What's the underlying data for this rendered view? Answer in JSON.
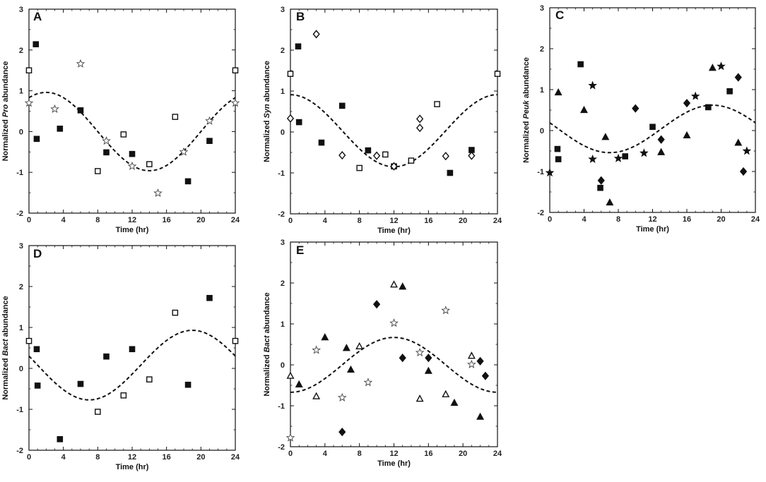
{
  "chart_data": [
    {
      "panel": "A",
      "type": "scatter",
      "ylabel_pre": "Normalized ",
      "ylabel_italic": "Pro",
      "ylabel_post": " abundance",
      "xlabel": "Time (hr)",
      "xlim": [
        0,
        24
      ],
      "ylim": [
        -2,
        3
      ],
      "xticks": [
        0,
        4,
        8,
        12,
        16,
        20,
        24
      ],
      "yticks": [
        -2,
        -1,
        0,
        1,
        2,
        3
      ],
      "series": [
        {
          "marker": "square-filled",
          "points": [
            [
              0.8,
              2.14
            ],
            [
              0.9,
              -0.18
            ],
            [
              3.6,
              0.07
            ],
            [
              6.0,
              0.52
            ],
            [
              9.0,
              -0.51
            ],
            [
              12.0,
              -0.55
            ],
            [
              18.5,
              -1.22
            ],
            [
              21.0,
              -0.23
            ]
          ]
        },
        {
          "marker": "square-open",
          "points": [
            [
              0.0,
              1.5
            ],
            [
              8.0,
              -0.97
            ],
            [
              11.0,
              -0.07
            ],
            [
              14.0,
              -0.8
            ],
            [
              17.0,
              0.36
            ],
            [
              24.0,
              1.5
            ]
          ]
        },
        {
          "marker": "star-open",
          "points": [
            [
              0.0,
              0.7
            ],
            [
              3.0,
              0.55
            ],
            [
              6.0,
              1.66
            ],
            [
              9.0,
              -0.23
            ],
            [
              12.0,
              -0.85
            ],
            [
              15.0,
              -1.51
            ],
            [
              18.0,
              -0.5
            ],
            [
              21.0,
              0.26
            ],
            [
              24.0,
              0.7
            ]
          ]
        }
      ],
      "fit": {
        "mean": 0.0,
        "amp": 0.96,
        "peak": 2.0,
        "period": 24
      }
    },
    {
      "panel": "B",
      "type": "scatter",
      "ylabel_pre": "Normalized ",
      "ylabel_italic": "Syn",
      "ylabel_post": " abundance",
      "xlabel": "Time (hr)",
      "xlim": [
        0,
        24
      ],
      "ylim": [
        -2,
        3
      ],
      "xticks": [
        0,
        4,
        8,
        12,
        16,
        20,
        24
      ],
      "yticks": [
        -2,
        -1,
        0,
        1,
        2,
        3
      ],
      "series": [
        {
          "marker": "square-filled",
          "points": [
            [
              0.9,
              2.09
            ],
            [
              1.0,
              0.24
            ],
            [
              3.6,
              -0.26
            ],
            [
              6.0,
              0.64
            ],
            [
              9.0,
              -0.45
            ],
            [
              12.0,
              -0.84
            ],
            [
              18.5,
              -1.0
            ],
            [
              21.0,
              -0.44
            ]
          ]
        },
        {
          "marker": "square-open",
          "points": [
            [
              0.0,
              1.42
            ],
            [
              8.0,
              -0.88
            ],
            [
              11.0,
              -0.55
            ],
            [
              14.0,
              -0.7
            ],
            [
              17.0,
              0.68
            ],
            [
              24.0,
              1.42
            ]
          ]
        },
        {
          "marker": "diamond-open",
          "points": [
            [
              0.0,
              0.33
            ],
            [
              3.0,
              2.39
            ],
            [
              6.0,
              -0.57
            ],
            [
              10.0,
              -0.58
            ],
            [
              12.0,
              -0.84
            ],
            [
              15.0,
              0.32
            ],
            [
              15.0,
              0.1
            ],
            [
              18.0,
              -0.59
            ],
            [
              21.0,
              -0.58
            ]
          ]
        }
      ],
      "fit": {
        "mean": 0.03,
        "amp": 0.88,
        "peak": 0.0,
        "period": 24
      }
    },
    {
      "panel": "C",
      "type": "scatter",
      "ylabel_pre": "Normalized ",
      "ylabel_italic": "Peuk",
      "ylabel_post": " abundance",
      "xlabel": "Time (hr)",
      "xlim": [
        0,
        24
      ],
      "ylim": [
        -2,
        3
      ],
      "xticks": [
        0,
        4,
        8,
        12,
        16,
        20,
        24
      ],
      "yticks": [
        -2,
        -1,
        0,
        1,
        2,
        3
      ],
      "series": [
        {
          "marker": "square-filled",
          "points": [
            [
              0.9,
              -0.45
            ],
            [
              1.0,
              -0.7
            ],
            [
              3.6,
              1.62
            ],
            [
              5.9,
              -1.4
            ],
            [
              8.8,
              -0.63
            ],
            [
              12.0,
              0.09
            ],
            [
              18.5,
              0.57
            ],
            [
              21.0,
              0.96
            ]
          ]
        },
        {
          "marker": "triangle-filled",
          "points": [
            [
              1.0,
              0.93
            ],
            [
              4.0,
              0.5
            ],
            [
              6.5,
              -0.16
            ],
            [
              7.0,
              -1.76
            ],
            [
              13.0,
              -0.53
            ],
            [
              16.0,
              -0.12
            ],
            [
              19.0,
              1.53
            ],
            [
              22.0,
              -0.3
            ]
          ]
        },
        {
          "marker": "star-filled",
          "points": [
            [
              0.0,
              -1.03
            ],
            [
              5.0,
              1.1
            ],
            [
              5.0,
              -0.7
            ],
            [
              8.0,
              -0.68
            ],
            [
              11.0,
              -0.55
            ],
            [
              17.0,
              0.84
            ],
            [
              20.0,
              1.57
            ],
            [
              23.0,
              -0.5
            ]
          ]
        },
        {
          "marker": "diamond-filled",
          "points": [
            [
              6.0,
              -1.22
            ],
            [
              10.0,
              0.54
            ],
            [
              13.0,
              -0.22
            ],
            [
              16.0,
              0.67
            ],
            [
              22.0,
              1.3
            ],
            [
              22.6,
              -1.0
            ]
          ]
        }
      ],
      "fit": {
        "mean": 0.04,
        "amp": 0.58,
        "peak": 19.0,
        "period": 24
      }
    },
    {
      "panel": "D",
      "type": "scatter",
      "ylabel_pre": "Normalized ",
      "ylabel_italic": "Bact",
      "ylabel_post": " abundance",
      "xlabel": "Time (hr)",
      "xlim": [
        0,
        24
      ],
      "ylim": [
        -2,
        3
      ],
      "xticks": [
        0,
        4,
        8,
        12,
        16,
        20,
        24
      ],
      "yticks": [
        -2,
        -1,
        0,
        1,
        2,
        3
      ],
      "series": [
        {
          "marker": "square-filled",
          "points": [
            [
              0.9,
              0.47
            ],
            [
              1.0,
              -0.42
            ],
            [
              3.6,
              -1.73
            ],
            [
              6.0,
              -0.38
            ],
            [
              9.0,
              0.29
            ],
            [
              12.0,
              0.47
            ],
            [
              18.5,
              -0.4
            ],
            [
              21.0,
              1.72
            ]
          ]
        },
        {
          "marker": "square-open",
          "points": [
            [
              0.0,
              0.67
            ],
            [
              8.0,
              -1.06
            ],
            [
              11.0,
              -0.66
            ],
            [
              14.0,
              -0.27
            ],
            [
              17.0,
              1.36
            ],
            [
              24.0,
              0.67
            ]
          ]
        }
      ],
      "fit": {
        "mean": 0.08,
        "amp": 0.85,
        "peak": 19.0,
        "period": 24
      }
    },
    {
      "panel": "E",
      "type": "scatter",
      "ylabel_pre": "Normalized ",
      "ylabel_italic": "Bact",
      "ylabel_post": " abundance",
      "xlabel": "Time (hr)",
      "xlim": [
        0,
        24
      ],
      "ylim": [
        -2,
        3
      ],
      "xticks": [
        0,
        4,
        8,
        12,
        16,
        20,
        24
      ],
      "yticks": [
        -2,
        -1,
        0,
        1,
        2,
        3
      ],
      "series": [
        {
          "marker": "triangle-open",
          "points": [
            [
              0.0,
              -0.27
            ],
            [
              3.0,
              -0.77
            ],
            [
              8.0,
              0.45
            ],
            [
              12.0,
              1.96
            ],
            [
              15.0,
              -0.83
            ],
            [
              18.0,
              -0.72
            ],
            [
              21.0,
              0.22
            ]
          ]
        },
        {
          "marker": "triangle-filled",
          "points": [
            [
              1.0,
              -0.48
            ],
            [
              4.0,
              0.67
            ],
            [
              6.5,
              0.41
            ],
            [
              7.0,
              -0.12
            ],
            [
              13.0,
              1.91
            ],
            [
              16.0,
              -0.15
            ],
            [
              19.0,
              -0.93
            ],
            [
              22.0,
              -1.27
            ]
          ]
        },
        {
          "marker": "star-open",
          "points": [
            [
              0.0,
              -1.78
            ],
            [
              3.0,
              0.36
            ],
            [
              6.0,
              -0.8
            ],
            [
              9.0,
              -0.43
            ],
            [
              12.0,
              1.02
            ],
            [
              15.0,
              0.3
            ],
            [
              18.0,
              1.33
            ],
            [
              21.0,
              0.01
            ]
          ]
        },
        {
          "marker": "diamond-filled",
          "points": [
            [
              6.0,
              -1.64
            ],
            [
              10.0,
              1.48
            ],
            [
              13.0,
              0.17
            ],
            [
              16.0,
              0.17
            ],
            [
              22.0,
              0.09
            ],
            [
              22.6,
              -0.27
            ]
          ]
        }
      ],
      "fit": {
        "mean": 0.0,
        "amp": 0.67,
        "peak": 12.0,
        "period": 24
      }
    }
  ]
}
